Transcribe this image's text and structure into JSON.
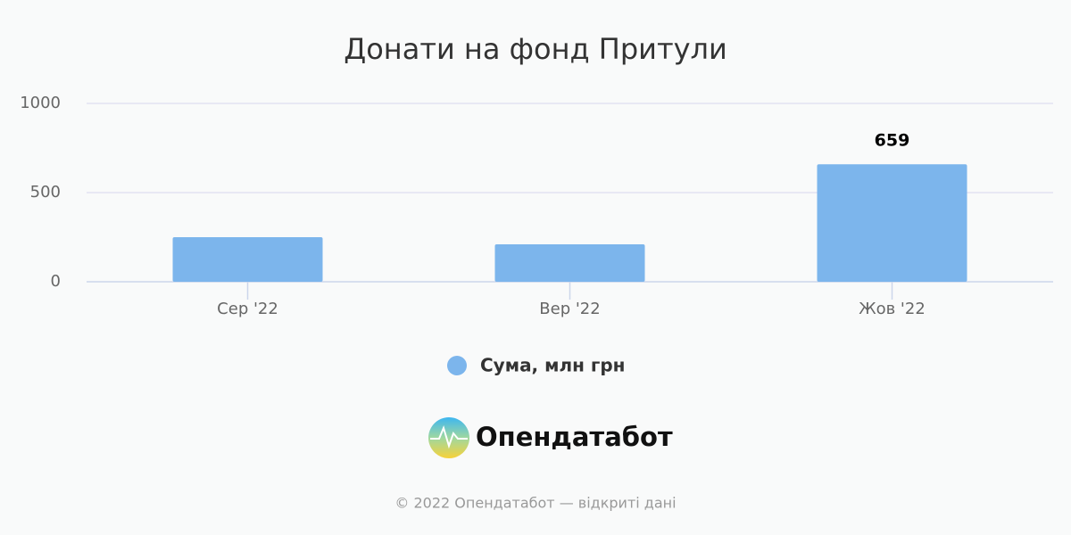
{
  "chart_data": {
    "type": "bar",
    "title": "Донати на фонд Притули",
    "categories": [
      "Сер '22",
      "Вер '22",
      "Жов '22"
    ],
    "series": [
      {
        "name": "Сума, млн грн",
        "color": "#7cb5ec",
        "values": [
          250,
          210,
          659
        ]
      }
    ],
    "value_labels": [
      null,
      null,
      "659"
    ],
    "ylim": [
      0,
      1000
    ],
    "yticks": [
      0,
      500,
      1000
    ],
    "grid": true
  },
  "logo_text": "Опендатабот",
  "footer": "© 2022 Опендатабот — відкриті дані"
}
